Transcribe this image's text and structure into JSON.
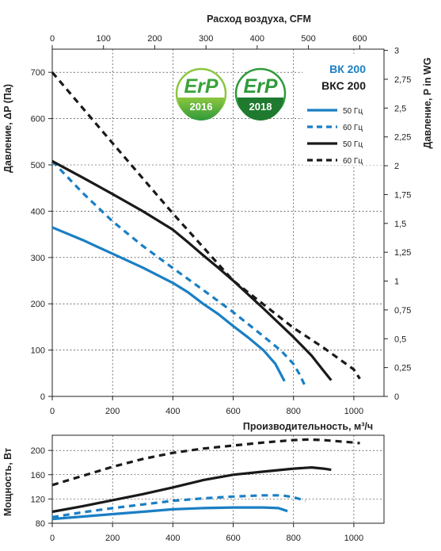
{
  "chart_data": [
    {
      "type": "line",
      "title": "",
      "xlabel": "Производительность, м³/ч",
      "x_top_label": "Расход воздуха, CFM",
      "ylabel": "Давление, ΔP (Па)",
      "ylabel_right": "Давление, P in WG",
      "xlim": [
        0,
        1100
      ],
      "ylim": [
        0,
        750
      ],
      "x_ticks": [
        "0",
        "200",
        "400",
        "600",
        "800",
        "1000"
      ],
      "y_ticks": [
        "0",
        "100",
        "200",
        "300",
        "400",
        "500",
        "600",
        "700"
      ],
      "x_top_ticks": [
        "0",
        "100",
        "200",
        "300",
        "400",
        "500",
        "600"
      ],
      "y_right_ticks": [
        "0",
        "0,25",
        "0,5",
        "0,75",
        "1",
        "1,25",
        "1,5",
        "1,75",
        "2",
        "2,25",
        "2,5",
        "2,75",
        "3"
      ],
      "grid": true,
      "legend_position": "top-right",
      "legend_headers": [
        {
          "text": "ВК 200",
          "color": "#1a7fc4"
        },
        {
          "text": "ВКС 200",
          "color": "#1a1a1a"
        }
      ],
      "badges": [
        {
          "word": "ErP",
          "year": "2016"
        },
        {
          "word": "ErP",
          "year": "2018"
        }
      ],
      "series": [
        {
          "name": "50 Гц",
          "color": "#1a7fc4",
          "style": "solid",
          "x": [
            0,
            100,
            200,
            300,
            400,
            450,
            500,
            550,
            600,
            650,
            700,
            740,
            770
          ],
          "y": [
            365,
            338,
            308,
            278,
            245,
            225,
            200,
            178,
            152,
            127,
            100,
            70,
            33
          ]
        },
        {
          "name": "60 Гц",
          "color": "#1a7fc4",
          "style": "dashed",
          "x": [
            0,
            100,
            200,
            300,
            400,
            500,
            600,
            700,
            760,
            800,
            820,
            840
          ],
          "y": [
            508,
            440,
            378,
            325,
            277,
            230,
            182,
            130,
            98,
            70,
            48,
            20
          ]
        },
        {
          "name": "50 Гц",
          "color": "#1a1a1a",
          "style": "solid",
          "x": [
            0,
            100,
            200,
            300,
            400,
            450,
            500,
            550,
            600,
            700,
            800,
            860,
            900,
            925
          ],
          "y": [
            508,
            473,
            437,
            400,
            360,
            333,
            305,
            278,
            250,
            190,
            128,
            88,
            55,
            35
          ]
        },
        {
          "name": "60 Гц",
          "color": "#1a1a1a",
          "style": "dashed",
          "x": [
            0,
            200,
            400,
            600,
            800,
            900,
            1000,
            1020
          ],
          "y": [
            700,
            547,
            395,
            250,
            148,
            105,
            58,
            38
          ]
        }
      ]
    },
    {
      "type": "line",
      "title": "",
      "xlabel": "",
      "ylabel": "Мощность, Вт",
      "xlim": [
        0,
        1100
      ],
      "ylim": [
        80,
        225
      ],
      "x_ticks": [
        "0",
        "200",
        "400",
        "600",
        "800",
        "1000"
      ],
      "y_ticks": [
        "80",
        "120",
        "160",
        "200"
      ],
      "grid": true,
      "series": [
        {
          "name": "50 Гц",
          "color": "#1a7fc4",
          "style": "solid",
          "x": [
            0,
            100,
            200,
            300,
            400,
            500,
            600,
            700,
            750,
            780
          ],
          "y": [
            87,
            91,
            95,
            99,
            103,
            105,
            106,
            106,
            105,
            100
          ]
        },
        {
          "name": "60 Гц",
          "color": "#1a7fc4",
          "style": "dashed",
          "x": [
            0,
            100,
            200,
            300,
            400,
            500,
            600,
            700,
            760,
            800,
            820,
            840
          ],
          "y": [
            90,
            98,
            105,
            111,
            117,
            121,
            124,
            126,
            126,
            123,
            120,
            117
          ]
        },
        {
          "name": "50 Гц",
          "color": "#1a1a1a",
          "style": "solid",
          "x": [
            0,
            100,
            200,
            300,
            400,
            500,
            600,
            700,
            800,
            860,
            900,
            925
          ],
          "y": [
            99,
            108,
            118,
            128,
            139,
            151,
            160,
            165,
            170,
            172,
            170,
            168
          ]
        },
        {
          "name": "60 Гц",
          "color": "#1a1a1a",
          "style": "dashed",
          "x": [
            0,
            100,
            200,
            300,
            400,
            500,
            600,
            700,
            800,
            850,
            900,
            950,
            1000,
            1020
          ],
          "y": [
            143,
            158,
            173,
            186,
            196,
            203,
            208,
            213,
            217,
            218,
            217,
            215,
            213,
            212
          ]
        }
      ]
    }
  ]
}
